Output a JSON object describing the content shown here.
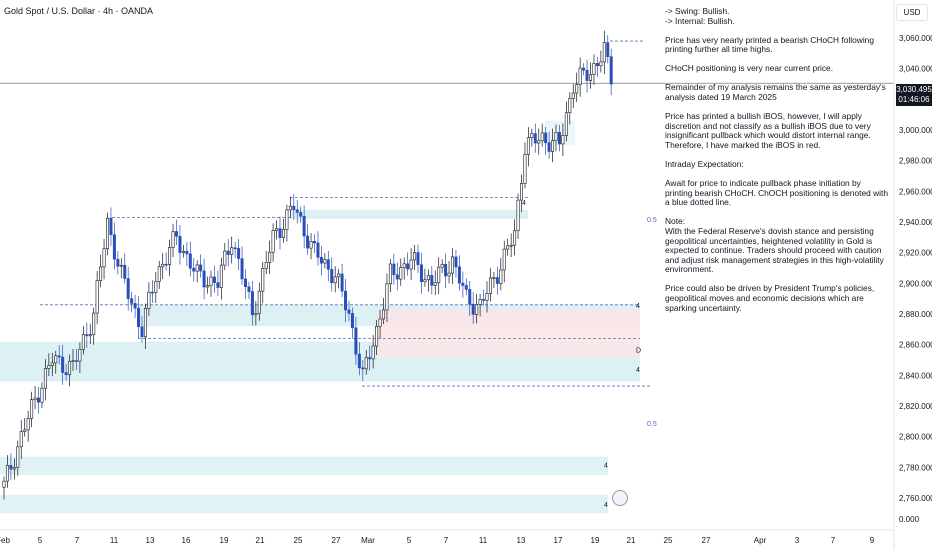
{
  "header": {
    "symbol_title": "Gold Spot / U.S. Dollar · 4h · OANDA"
  },
  "currency": "USD",
  "price_tag": {
    "price": "3,030.495",
    "countdown": "01:46:06"
  },
  "chart_data": {
    "type": "candlestick",
    "title": "Gold Spot / U.S. Dollar · 4h · OANDA",
    "ylim": [
      2744,
      3074
    ],
    "yticks": [
      2760,
      2780,
      2800,
      2820,
      2840,
      2860,
      2880,
      2900,
      2920,
      2940,
      2960,
      2980,
      3000,
      3020,
      3040,
      3060
    ],
    "ytick_labels": [
      "2,760.000",
      "2,780.000",
      "2,800.000",
      "2,820.000",
      "2,840.000",
      "2,860.000",
      "2,880.000",
      "2,900.000",
      "2,920.000",
      "2,940.000",
      "2,960.000",
      "2,980.000",
      "3,000.000",
      "3,020.000",
      "3,040.000",
      "3,060.000"
    ],
    "bottom_label": "0.000",
    "xticks": [
      "Feb",
      "5",
      "7",
      "11",
      "13",
      "16",
      "19",
      "21",
      "25",
      "27",
      "Mar",
      "5",
      "7",
      "11",
      "13",
      "17",
      "19",
      "21",
      "25",
      "27",
      "Apr",
      "3",
      "7",
      "9"
    ],
    "anchors": [
      {
        "i": 0,
        "o": 2768,
        "c": 2768
      },
      {
        "i": 5,
        "o": 2800,
        "c": 2800
      },
      {
        "i": 10,
        "o": 2830,
        "c": 2830
      },
      {
        "i": 14,
        "o": 2850,
        "c": 2850
      },
      {
        "i": 20,
        "o": 2845,
        "c": 2845
      },
      {
        "i": 26,
        "o": 2880,
        "c": 2880
      },
      {
        "i": 30,
        "o": 2940,
        "c": 2940
      },
      {
        "i": 34,
        "o": 2905,
        "c": 2905
      },
      {
        "i": 40,
        "o": 2870,
        "c": 2870
      },
      {
        "i": 44,
        "o": 2905,
        "c": 2905
      },
      {
        "i": 50,
        "o": 2930,
        "c": 2930
      },
      {
        "i": 56,
        "o": 2905,
        "c": 2905
      },
      {
        "i": 62,
        "o": 2900,
        "c": 2900
      },
      {
        "i": 66,
        "o": 2930,
        "c": 2930
      },
      {
        "i": 72,
        "o": 2880,
        "c": 2880
      },
      {
        "i": 78,
        "o": 2930,
        "c": 2930
      },
      {
        "i": 84,
        "o": 2950,
        "c": 2950
      },
      {
        "i": 90,
        "o": 2920,
        "c": 2920
      },
      {
        "i": 96,
        "o": 2905,
        "c": 2905
      },
      {
        "i": 100,
        "o": 2880,
        "c": 2880
      },
      {
        "i": 104,
        "o": 2838,
        "c": 2838
      },
      {
        "i": 108,
        "o": 2870,
        "c": 2870
      },
      {
        "i": 112,
        "o": 2905,
        "c": 2905
      },
      {
        "i": 118,
        "o": 2915,
        "c": 2915
      },
      {
        "i": 124,
        "o": 2900,
        "c": 2900
      },
      {
        "i": 130,
        "o": 2915,
        "c": 2915
      },
      {
        "i": 134,
        "o": 2890,
        "c": 2890
      },
      {
        "i": 138,
        "o": 2885,
        "c": 2885
      },
      {
        "i": 144,
        "o": 2912,
        "c": 2912
      },
      {
        "i": 148,
        "o": 2932,
        "c": 2932
      },
      {
        "i": 151,
        "o": 2990,
        "c": 2990
      },
      {
        "i": 156,
        "o": 2995,
        "c": 2995
      },
      {
        "i": 161,
        "o": 2990,
        "c": 2990
      },
      {
        "i": 165,
        "o": 3030,
        "c": 3030
      },
      {
        "i": 170,
        "o": 3038,
        "c": 3038
      },
      {
        "i": 174,
        "o": 3052,
        "c": 3052
      },
      {
        "i": 176,
        "o": 3030,
        "c": 3030
      }
    ],
    "zones": [
      {
        "name": "supply-2948",
        "y1": 2948,
        "y2": 2942,
        "color": "#d7eef2"
      },
      {
        "name": "demand-2886",
        "y1": 2886,
        "y2": 2872,
        "color": "#d7eef2"
      },
      {
        "name": "demand-2862",
        "y1": 2862,
        "y2": 2836,
        "color": "#d7eef2"
      },
      {
        "name": "red-zone",
        "y1": 2883,
        "y2": 2852,
        "color": "#fbe5e5"
      },
      {
        "name": "demand-2787",
        "y1": 2787,
        "y2": 2775,
        "color": "#dcf0f3"
      },
      {
        "name": "demand-2762",
        "y1": 2762,
        "y2": 2750,
        "color": "#dcf0f3"
      },
      {
        "name": "top-box",
        "y1": 3006,
        "y2": 2990,
        "color": "#e6f4f6"
      }
    ],
    "annotations": [
      {
        "label": "4",
        "y": 2886
      },
      {
        "label": "D",
        "y": 2857
      },
      {
        "label": "4",
        "y": 2844
      },
      {
        "label": "4",
        "y": 2782
      },
      {
        "label": "4",
        "y": 2756
      },
      {
        "label": "4",
        "y": 2953
      },
      {
        "label": "0.5",
        "y": 2942
      },
      {
        "label": "0.5",
        "y": 2809
      }
    ],
    "current_price": 3030.495
  },
  "notes": [
    "-> Swing:  Bullish.\n-> Internal:  Bullish.",
    "Price has very nearly printed a bearish CHoCH following printing further all time highs.",
    "CHoCH positioning is very near current price.",
    "Remainder of my analysis remains the same as yesterday's analysis dated 19 March 2025",
    "Price has printed a bullish iBOS, however, I will apply discretion and not classify as a bullish iBOS due to very insignificant pullback which would distort internal range.  Therefore, I have marked the iBOS in red.",
    "Intraday Expectation:",
    "Await for price to indicate pullback phase initiation by printing bearish CHoCH.  ChOCH positioning is denoted with a blue dotted line.",
    "Note:\nWith the Federal Reserve's dovish stance and persisting geopolitical uncertainties, heightened volatility in Gold is expected to continue. Traders should proceed with caution and adjust risk management strategies in this high-volatility environment.",
    "Price could also be driven by President Trump's policies, geopolitical moves and economic decisions which are sparking uncertainty."
  ]
}
